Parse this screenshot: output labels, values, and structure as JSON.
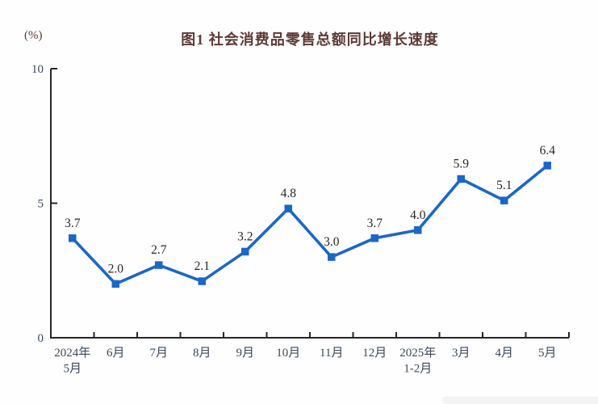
{
  "header": {
    "title": "图1  社会消费品零售总额同比增长速度",
    "unit_label": "(%)"
  },
  "chart_data": {
    "type": "line",
    "title": "图1  社会消费品零售总额同比增长速度",
    "ylabel": "(%)",
    "categories": [
      "2024年\n5月",
      "6月",
      "7月",
      "8月",
      "9月",
      "10月",
      "11月",
      "12月",
      "2025年\n1-2月",
      "3月",
      "4月",
      "5月"
    ],
    "values": [
      3.7,
      2.0,
      2.7,
      2.1,
      3.2,
      4.8,
      3.0,
      3.7,
      4.0,
      5.9,
      5.1,
      6.4
    ],
    "labels": [
      "3.7",
      "2.0",
      "2.7",
      "2.1",
      "3.2",
      "4.8",
      "3.0",
      "3.7",
      "4.0",
      "5.9",
      "5.1",
      "6.4"
    ],
    "ylim": [
      0,
      10
    ],
    "yticks": [
      0,
      5,
      10
    ],
    "grid": false,
    "legend_position": "none",
    "line_color": "#1b67c6",
    "marker_shape": "square",
    "axis_color": "#262626",
    "tick_label_color": "#3b4859",
    "data_label_color": "#262626",
    "title_color": "#5e3a34"
  },
  "page": {
    "bottom_bar_color": "#f3f3f3"
  }
}
